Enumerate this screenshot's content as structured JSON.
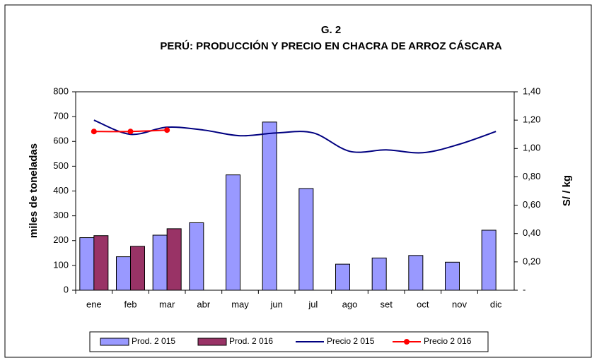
{
  "chart_data": {
    "type": "bar",
    "title": "G. 2",
    "subtitle": "PERÚ: PRODUCCIÓN Y PRECIO EN CHACRA DE ARROZ CÁSCARA",
    "ylabel": "miles de toneladas",
    "y2label": "S/ / kg",
    "categories": [
      "ene",
      "feb",
      "mar",
      "abr",
      "may",
      "jun",
      "jul",
      "ago",
      "set",
      "oct",
      "nov",
      "dic"
    ],
    "series": [
      {
        "name": "Prod. 2 015",
        "color": "#9999ff",
        "kind": "bar",
        "values": [
          212,
          135,
          222,
          272,
          465,
          678,
          410,
          105,
          130,
          140,
          113,
          242
        ]
      },
      {
        "name": "Prod. 2 016",
        "color": "#993366",
        "kind": "bar",
        "values": [
          220,
          177,
          248,
          null,
          null,
          null,
          null,
          null,
          null,
          null,
          null,
          null
        ]
      },
      {
        "name": "Precio 2 015",
        "color": "#000080",
        "kind": "line",
        "axis": "y2",
        "values": [
          1.2,
          1.1,
          1.15,
          1.13,
          1.09,
          1.11,
          1.11,
          0.98,
          0.99,
          0.97,
          1.03,
          1.12
        ]
      },
      {
        "name": "Precio 2 016",
        "color": "#ff0000",
        "kind": "line",
        "markers": true,
        "axis": "y2",
        "values": [
          1.12,
          1.12,
          1.13,
          null,
          null,
          null,
          null,
          null,
          null,
          null,
          null,
          null
        ]
      }
    ],
    "ylim": [
      0,
      800
    ],
    "yticks": [
      0,
      100,
      200,
      300,
      400,
      500,
      600,
      700,
      800
    ],
    "y2lim": [
      0,
      1.4
    ],
    "y2ticks": [
      {
        "value": 0,
        "label": "-"
      },
      {
        "value": 0.2,
        "label": "0,20"
      },
      {
        "value": 0.4,
        "label": "0,40"
      },
      {
        "value": 0.6,
        "label": "0,60"
      },
      {
        "value": 0.8,
        "label": "0,80"
      },
      {
        "value": 1.0,
        "label": "1,00"
      },
      {
        "value": 1.2,
        "label": "1,20"
      },
      {
        "value": 1.4,
        "label": "1,40"
      }
    ]
  }
}
